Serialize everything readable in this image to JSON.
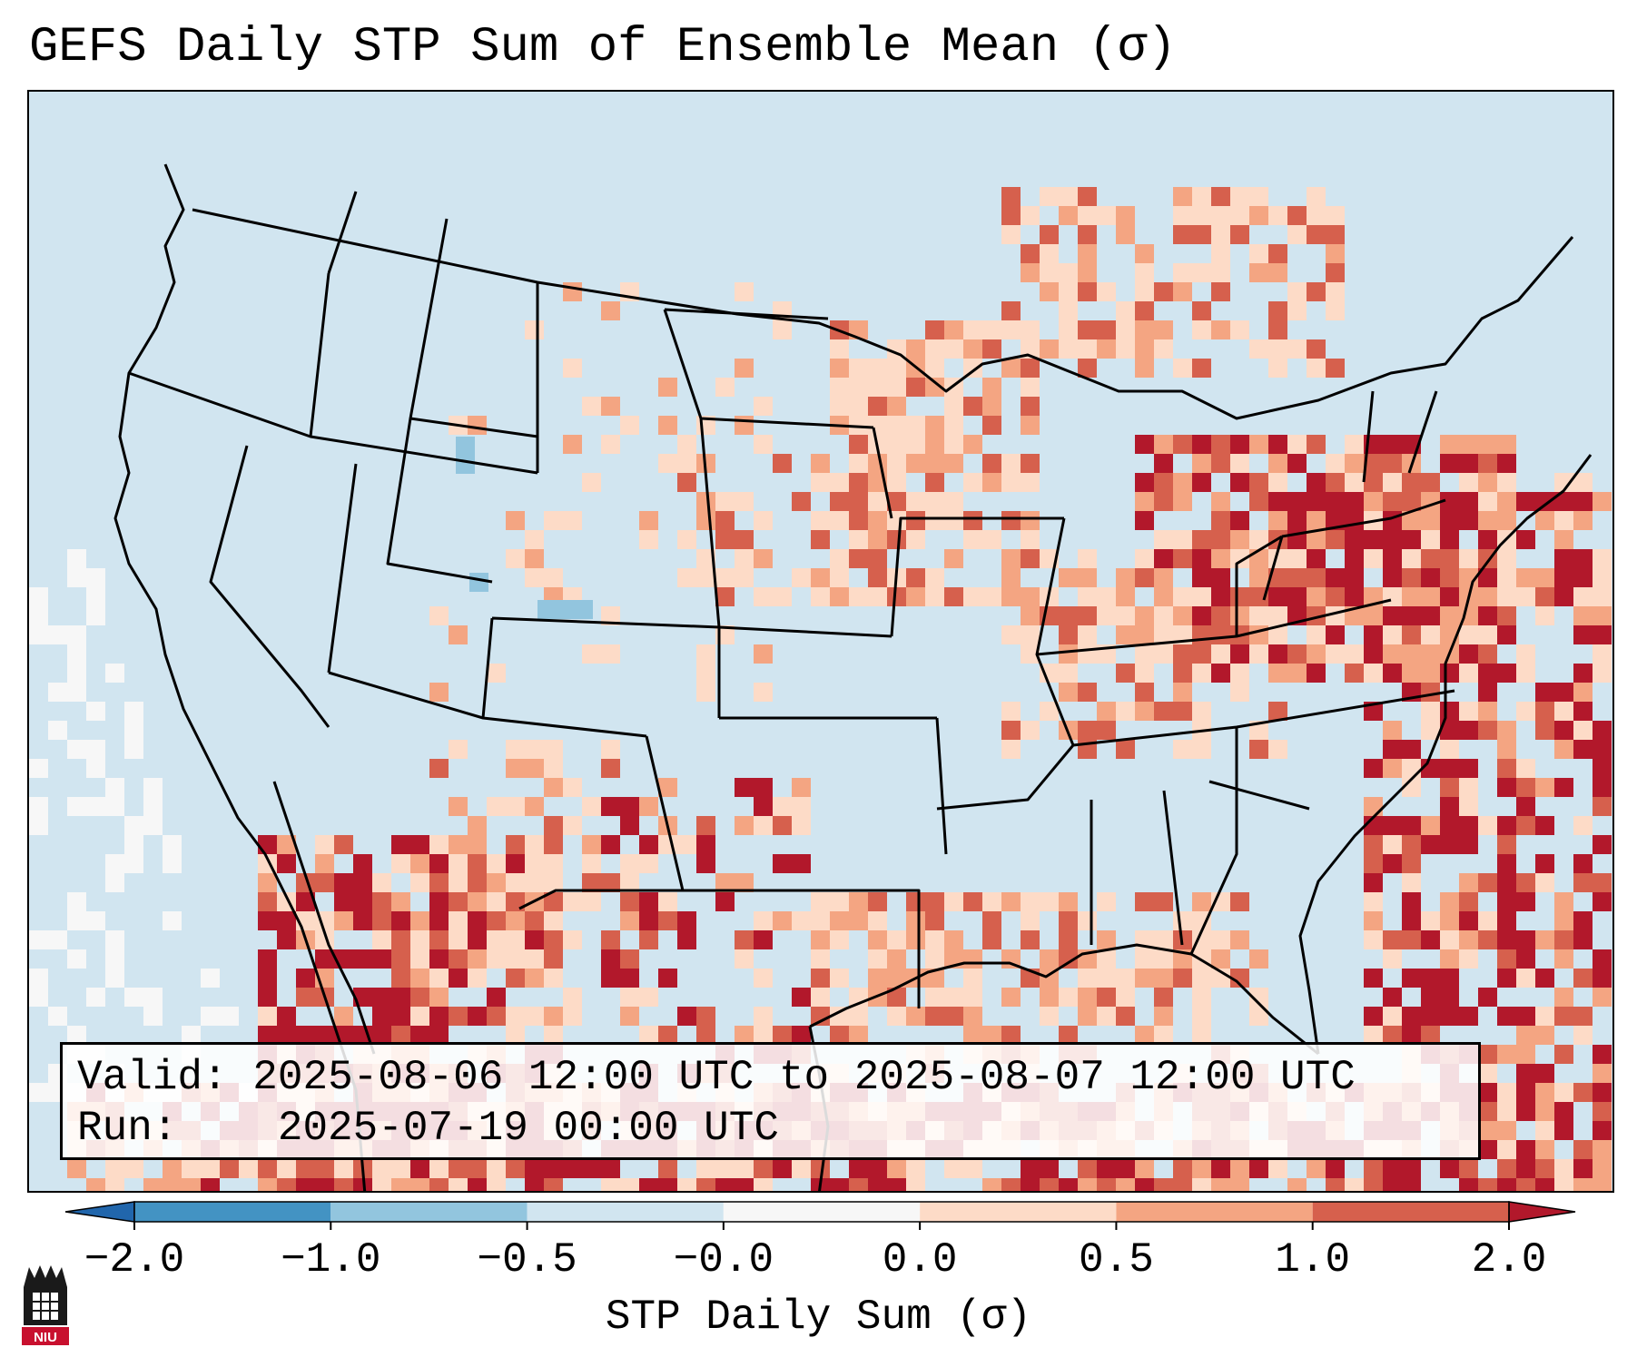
{
  "title": "GEFS Daily STP Sum of Ensemble Mean (σ)",
  "info": {
    "valid_label": "Valid:",
    "valid_value": "2025-08-06 12:00 UTC to 2025-08-07 12:00 UTC",
    "run_label": "Run:",
    "run_value": "2025-07-19 00:00 UTC"
  },
  "colorbar": {
    "label": "STP Daily Sum (σ)",
    "ticks": [
      "−2.0",
      "−1.0",
      "−0.5",
      "−0.0",
      "0.0",
      "0.5",
      "1.0",
      "2.0"
    ],
    "colors": [
      "#2166ac",
      "#4393c3",
      "#92c5de",
      "#d1e5f0",
      "#f7f7f7",
      "#fddbc7",
      "#f4a582",
      "#d6604d",
      "#b2182b"
    ]
  },
  "logo": {
    "text": "NIU"
  },
  "map": {
    "background_color": "#d1e5f0",
    "borders": "US states, Canada, Mexico coastlines",
    "legend_colors": {
      "low": "#f7f7f7",
      "pos1": "#fddbc7",
      "pos2": "#f4a582",
      "pos3": "#d6604d",
      "pos4": "#b2182b",
      "neg1": "#92c5de"
    }
  }
}
